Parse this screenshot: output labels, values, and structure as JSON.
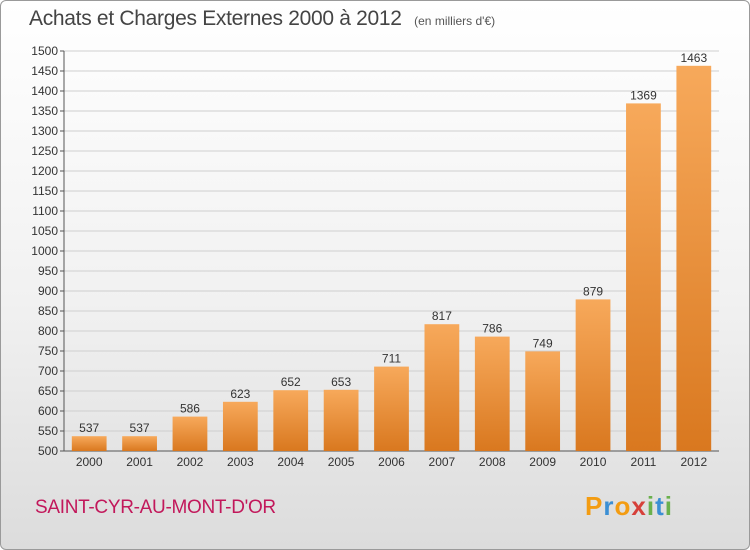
{
  "title": "Achats et Charges Externes 2000 à 2012",
  "subtitle": "(en milliers d'€)",
  "commune": "SAINT-CYR-AU-MONT-D'OR",
  "logo": {
    "text": "Proxiti",
    "letters": [
      "P",
      "r",
      "o",
      "x",
      "i",
      "t",
      "i"
    ],
    "colors": [
      "#f39c12",
      "#3b8fd4",
      "#f39c12",
      "#d6403a",
      "#6ab04c",
      "#3b8fd4",
      "#6ab04c"
    ]
  },
  "colors": {
    "bar_top": "#f7a95b",
    "bar_bottom": "#d9781f",
    "commune": "#c2185b"
  },
  "chart_data": {
    "type": "bar",
    "categories": [
      "2000",
      "2001",
      "2002",
      "2003",
      "2004",
      "2005",
      "2006",
      "2007",
      "2008",
      "2009",
      "2010",
      "2011",
      "2012"
    ],
    "values": [
      537,
      537,
      586,
      623,
      652,
      653,
      711,
      817,
      786,
      749,
      879,
      1369,
      1463
    ],
    "data_labels": [
      "537",
      "537",
      "586",
      "623",
      "652",
      "653",
      "711",
      "817",
      "786",
      "749",
      "879",
      "1369",
      "1463"
    ],
    "title": "Achats et Charges Externes 2000 à 2012",
    "ylim": [
      500,
      1500
    ],
    "yticks": [
      500,
      550,
      600,
      650,
      700,
      750,
      800,
      850,
      900,
      950,
      1000,
      1050,
      1100,
      1150,
      1200,
      1250,
      1300,
      1350,
      1400,
      1450,
      1500
    ],
    "grid": true
  }
}
